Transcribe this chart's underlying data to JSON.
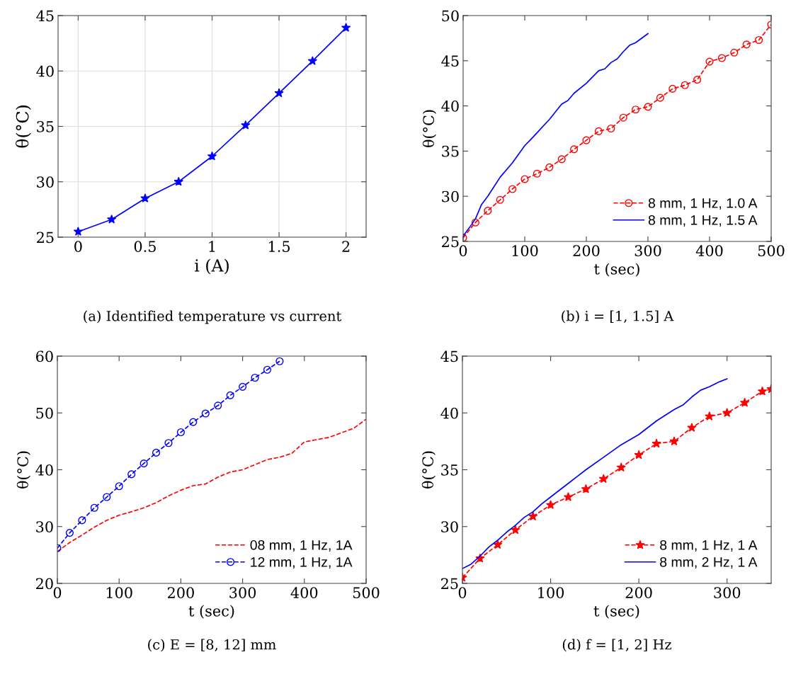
{
  "chart_data": [
    {
      "type": "line",
      "xlabel": "i (A)",
      "ylabel": "θ(°C)",
      "annotations": [
        "(a) Identified temperature vs current"
      ],
      "xlim": [
        -0.15,
        2.15
      ],
      "xticks": [
        0,
        0.5,
        1,
        1.5,
        2
      ],
      "ylim": [
        25,
        45
      ],
      "yticks": [
        25,
        30,
        35,
        40,
        45
      ],
      "grid": true,
      "legend": false,
      "series": [
        {
          "color": "#0000ff",
          "marker": "star",
          "line_style": "solid",
          "x": [
            0,
            0.25,
            0.5,
            0.75,
            1,
            1.25,
            1.5,
            1.75,
            2
          ],
          "values": [
            25.5,
            26.6,
            28.5,
            30,
            32.3,
            35.1,
            38,
            40.9,
            43.9
          ]
        }
      ]
    },
    {
      "type": "line",
      "xlabel": "t (sec)",
      "ylabel": "θ(°C)",
      "annotations": [
        "(b) i = [1, 1.5] A"
      ],
      "xlim": [
        0,
        500
      ],
      "xticks": [
        0,
        100,
        200,
        300,
        400,
        500
      ],
      "ylim": [
        25,
        50
      ],
      "yticks": [
        25,
        30,
        35,
        40,
        45,
        50
      ],
      "grid": false,
      "legend": "lower right",
      "series": [
        {
          "name": "8 mm, 1 Hz, 1.0 A",
          "color": "#ff0000",
          "marker": "circle",
          "line_style": "dashed",
          "x": [
            0,
            20,
            40,
            60,
            80,
            100,
            120,
            140,
            160,
            180,
            200,
            220,
            240,
            260,
            280,
            300,
            320,
            340,
            360,
            380,
            400,
            420,
            440,
            460,
            480,
            500
          ],
          "values": [
            25.4,
            27.1,
            28.4,
            29.6,
            30.8,
            31.9,
            32.5,
            33.2,
            34.1,
            35.2,
            36.2,
            37.2,
            37.5,
            38.7,
            39.6,
            39.9,
            40.9,
            41.9,
            42.3,
            42.9,
            44.9,
            45.3,
            45.9,
            46.8,
            47.3,
            49.0
          ]
        },
        {
          "name": "8 mm, 1 Hz, 1.5 A",
          "color": "#0000ff",
          "marker": "none",
          "line_style": "solid",
          "x": [
            0,
            10,
            20,
            30,
            40,
            60,
            80,
            100,
            110,
            140,
            160,
            170,
            180,
            200,
            220,
            230,
            240,
            250,
            260,
            270,
            280,
            300
          ],
          "values": [
            25.6,
            26.5,
            27.5,
            29.1,
            30.0,
            32.1,
            33.7,
            35.6,
            36.3,
            38.5,
            40.2,
            40.6,
            41.4,
            42.5,
            43.9,
            44.1,
            44.8,
            45.2,
            46.0,
            46.7,
            47.0,
            48.0
          ]
        }
      ]
    },
    {
      "type": "line",
      "xlabel": "t (sec)",
      "ylabel": "θ(°C)",
      "annotations": [
        "(c) E = [8, 12] mm"
      ],
      "xlim": [
        0,
        500
      ],
      "xticks": [
        0,
        100,
        200,
        300,
        400,
        500
      ],
      "ylim": [
        20,
        60
      ],
      "yticks": [
        20,
        30,
        40,
        50,
        60
      ],
      "grid": false,
      "legend": "lower right",
      "series": [
        {
          "name": "08 mm, 1 Hz, 1A",
          "color": "#ff0000",
          "marker": "none",
          "line_style": "dashed",
          "x": [
            0,
            20,
            40,
            60,
            80,
            100,
            120,
            140,
            160,
            180,
            200,
            220,
            240,
            260,
            280,
            300,
            320,
            340,
            360,
            380,
            400,
            440,
            480,
            500
          ],
          "values": [
            25.6,
            27.2,
            28.5,
            29.9,
            31.1,
            32.0,
            32.6,
            33.3,
            34.2,
            35.4,
            36.4,
            37.2,
            37.5,
            38.7,
            39.6,
            40.0,
            40.9,
            41.8,
            42.2,
            42.9,
            44.9,
            45.7,
            47.3,
            48.9
          ]
        },
        {
          "name": "12 mm, 1 Hz, 1A",
          "color": "#0000ff",
          "marker": "circle",
          "line_style": "dashed",
          "x": [
            0,
            20,
            40,
            60,
            80,
            100,
            120,
            140,
            160,
            180,
            200,
            220,
            240,
            260,
            280,
            300,
            320,
            340,
            360
          ],
          "values": [
            26.2,
            28.9,
            31.1,
            33.3,
            35.2,
            37.1,
            39.2,
            41.1,
            43.0,
            44.7,
            46.6,
            48.4,
            49.9,
            51.3,
            53.1,
            54.6,
            56.2,
            57.6,
            59.1
          ]
        }
      ]
    },
    {
      "type": "line",
      "xlabel": "t (sec)",
      "ylabel": "θ(°C)",
      "annotations": [
        "(d) f = [1, 2] Hz"
      ],
      "xlim": [
        0,
        350
      ],
      "xticks": [
        0,
        100,
        200,
        300
      ],
      "ylim": [
        25,
        45
      ],
      "yticks": [
        25,
        30,
        35,
        40,
        45
      ],
      "grid": false,
      "legend": "lower right",
      "series": [
        {
          "name": "8 mm, 1 Hz, 1 A",
          "color": "#ff0000",
          "marker": "star",
          "line_style": "dashed",
          "x": [
            0,
            20,
            40,
            60,
            80,
            100,
            120,
            140,
            160,
            180,
            200,
            220,
            240,
            260,
            280,
            300,
            320,
            340,
            350
          ],
          "values": [
            25.5,
            27.2,
            28.4,
            29.7,
            30.9,
            31.9,
            32.6,
            33.3,
            34.2,
            35.2,
            36.3,
            37.3,
            37.5,
            38.7,
            39.7,
            40.0,
            40.9,
            41.9,
            42.1
          ]
        },
        {
          "name": "8 mm, 2 Hz, 1 A",
          "color": "#0000ff",
          "marker": "none",
          "line_style": "solid",
          "x": [
            0,
            10,
            20,
            30,
            40,
            50,
            60,
            70,
            80,
            90,
            100,
            120,
            130,
            140,
            160,
            180,
            200,
            220,
            230,
            240,
            250,
            260,
            270,
            280,
            290,
            300
          ],
          "values": [
            26.3,
            26.7,
            27.4,
            28.2,
            28.8,
            29.5,
            30.1,
            30.8,
            31.3,
            32.0,
            32.6,
            33.8,
            34.4,
            35.0,
            36.1,
            37.2,
            38.1,
            39.3,
            39.8,
            40.3,
            40.7,
            41.4,
            42.0,
            42.3,
            42.7,
            43.0
          ]
        }
      ]
    }
  ]
}
